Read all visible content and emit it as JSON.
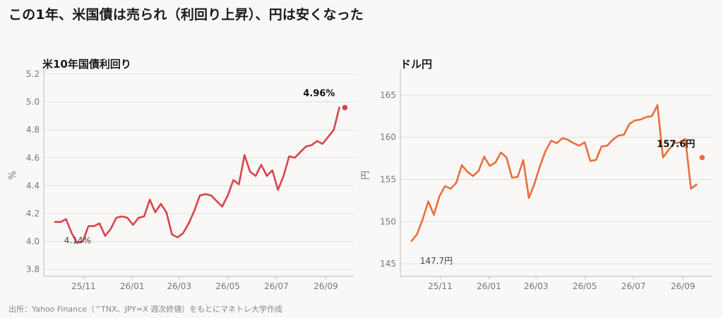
{
  "page": {
    "title": "この1年、米国債は売られ（利回り上昇）、円は安くなった",
    "source": "出所：Yahoo Finance（^TNX、JPY=X 週次終値）をもとにマネトレ大学作成"
  },
  "colors": {
    "yield_line": "#d9434b",
    "fx_line": "#ea6e3a",
    "grid": "#dddddd",
    "axis": "#bbbbbb"
  },
  "chart_data": [
    {
      "type": "line",
      "title": "米10年国債利回り",
      "ylabel": "%",
      "xlabel": "",
      "ylim": [
        3.75,
        5.2
      ],
      "y_ticks": [
        3.8,
        4.0,
        4.2,
        4.4,
        4.6,
        4.8,
        5.0,
        5.2
      ],
      "y_tick_labels": [
        "3.8",
        "4.0",
        "4.2",
        "4.4",
        "4.6",
        "4.8",
        "5.0",
        "5.2"
      ],
      "x_ticks": [
        "2025-11-01",
        "2026-01-01",
        "2026-03-01",
        "2026-05-01",
        "2026-07-01",
        "2026-09-01"
      ],
      "x_tick_labels": [
        "25/11",
        "26/01",
        "26/03",
        "26/05",
        "26/07",
        "26/09"
      ],
      "grid": true,
      "x": [
        "2025-09-26",
        "2025-10-03",
        "2025-10-10",
        "2025-10-17",
        "2025-10-24",
        "2025-10-31",
        "2025-11-07",
        "2025-11-14",
        "2025-11-21",
        "2025-11-28",
        "2025-12-05",
        "2025-12-12",
        "2025-12-19",
        "2025-12-26",
        "2026-01-02",
        "2026-01-09",
        "2026-01-16",
        "2026-01-23",
        "2026-01-30",
        "2026-02-06",
        "2026-02-13",
        "2026-02-20",
        "2026-02-27",
        "2026-03-06",
        "2026-03-13",
        "2026-03-20",
        "2026-03-27",
        "2026-04-03",
        "2026-04-10",
        "2026-04-17",
        "2026-04-24",
        "2026-05-01",
        "2026-05-08",
        "2026-05-15",
        "2026-05-22",
        "2026-05-29",
        "2026-06-05",
        "2026-06-12",
        "2026-06-19",
        "2026-06-26",
        "2026-07-03",
        "2026-07-10",
        "2026-07-17",
        "2026-07-24",
        "2026-07-31",
        "2026-08-07",
        "2026-08-14",
        "2026-08-21",
        "2026-08-28",
        "2026-09-04",
        "2026-09-11",
        "2026-09-18",
        "2026-09-25"
      ],
      "series": [
        {
          "values": [
            4.14,
            4.14,
            4.16,
            4.06,
            3.99,
            4.0,
            4.11,
            4.11,
            4.13,
            4.04,
            4.09,
            4.17,
            4.18,
            4.17,
            4.12,
            4.17,
            4.18,
            4.3,
            4.21,
            4.27,
            4.21,
            4.05,
            4.03,
            4.06,
            4.13,
            4.22,
            4.33,
            4.34,
            4.33,
            4.29,
            4.25,
            4.33,
            4.44,
            4.41,
            4.62,
            4.5,
            4.47,
            4.55,
            4.47,
            4.51,
            4.37,
            4.47,
            4.61,
            4.6,
            4.64,
            4.68,
            4.69,
            4.72,
            4.7,
            4.75,
            4.8,
            4.96,
            4.96
          ]
        }
      ],
      "annotations": {
        "start_label": "4.14%",
        "end_label": "4.96%"
      }
    },
    {
      "type": "line",
      "title": "ドル円",
      "ylabel": "円",
      "xlabel": "",
      "ylim": [
        143.5,
        167.5
      ],
      "y_ticks": [
        145,
        150,
        155,
        160,
        165
      ],
      "y_tick_labels": [
        "145",
        "150",
        "155",
        "160",
        "165"
      ],
      "x_ticks": [
        "2025-11-01",
        "2026-01-01",
        "2026-03-01",
        "2026-05-01",
        "2026-07-01",
        "2026-09-01"
      ],
      "x_tick_labels": [
        "25/11",
        "26/01",
        "26/03",
        "26/05",
        "26/07",
        "26/09"
      ],
      "grid": true,
      "x": [
        "2025-09-26",
        "2025-10-03",
        "2025-10-10",
        "2025-10-17",
        "2025-10-24",
        "2025-10-31",
        "2025-11-07",
        "2025-11-14",
        "2025-11-21",
        "2025-11-28",
        "2025-12-05",
        "2025-12-12",
        "2025-12-19",
        "2025-12-26",
        "2026-01-02",
        "2026-01-09",
        "2026-01-16",
        "2026-01-23",
        "2026-01-30",
        "2026-02-06",
        "2026-02-13",
        "2026-02-20",
        "2026-02-27",
        "2026-03-06",
        "2026-03-13",
        "2026-03-20",
        "2026-03-27",
        "2026-04-03",
        "2026-04-10",
        "2026-04-17",
        "2026-04-24",
        "2026-05-01",
        "2026-05-08",
        "2026-05-15",
        "2026-05-22",
        "2026-05-29",
        "2026-06-05",
        "2026-06-12",
        "2026-06-19",
        "2026-06-26",
        "2026-07-03",
        "2026-07-10",
        "2026-07-17",
        "2026-07-24",
        "2026-07-31",
        "2026-08-07",
        "2026-08-14",
        "2026-08-21",
        "2026-08-28",
        "2026-09-04",
        "2026-09-11",
        "2026-09-18",
        "2026-09-25"
      ],
      "series": [
        {
          "values": [
            147.7,
            148.5,
            150.3,
            152.4,
            150.8,
            153.0,
            154.2,
            153.9,
            154.6,
            156.7,
            155.9,
            155.4,
            156.0,
            157.7,
            156.6,
            157.0,
            158.2,
            157.6,
            155.2,
            155.3,
            157.3,
            152.8,
            154.5,
            156.6,
            158.4,
            159.6,
            159.3,
            159.9,
            159.7,
            159.3,
            159.0,
            159.4,
            157.2,
            157.3,
            158.9,
            159.0,
            159.7,
            160.2,
            160.3,
            161.6,
            162.0,
            162.1,
            162.4,
            162.5,
            163.8,
            157.6,
            158.5,
            159.3,
            159.4,
            159.8,
            153.9,
            154.4,
            157.6
          ]
        }
      ],
      "annotations": {
        "start_label": "147.7円",
        "end_label": "157.6円"
      }
    }
  ]
}
